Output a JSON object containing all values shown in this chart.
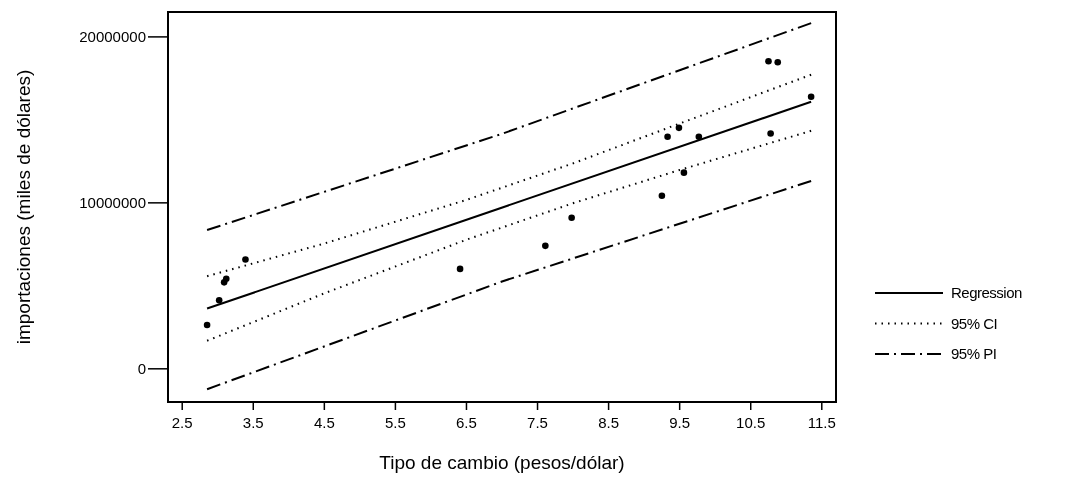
{
  "chart_data": {
    "type": "scatter",
    "xlabel": "Tipo de cambio (pesos/dólar)",
    "ylabel": "importaciones (miles de dólares)",
    "xlim": [
      2.3,
      11.7
    ],
    "ylim": [
      -2000000,
      21500000
    ],
    "xticks": [
      2.5,
      3.5,
      4.5,
      5.5,
      6.5,
      7.5,
      8.5,
      9.5,
      10.5,
      11.5
    ],
    "yticks": [
      0,
      10000000,
      20000000
    ],
    "grid": false,
    "legend": "right",
    "series": [
      {
        "marker": "circle",
        "color": "#000000",
        "x": [
          2.85,
          3.02,
          3.09,
          3.12,
          3.39,
          6.41,
          7.61,
          7.98,
          9.25,
          9.33,
          9.49,
          9.56,
          9.77,
          10.75,
          10.88,
          10.78,
          11.35
        ],
        "values": [
          2640000,
          4130000,
          5210000,
          5420000,
          6590000,
          6020000,
          7410000,
          9100000,
          10430000,
          13980000,
          14520000,
          11820000,
          13980000,
          18530000,
          18470000,
          14180000,
          16390000
        ]
      },
      {
        "type": "line",
        "name": "Regression",
        "color": "#000000",
        "line_style": "solid",
        "marker": "none",
        "x": [
          2.85,
          11.35
        ],
        "values": [
          3630000,
          16090000
        ]
      },
      {
        "type": "line",
        "name": "95% CI",
        "color": "#000000",
        "line_style": "dotted",
        "marker": "none",
        "x": [
          2.85,
          4.5,
          6.5,
          8.0,
          9.5,
          11.35
        ],
        "values": [
          5580000,
          7550000,
          10180000,
          12380000,
          14780000,
          17720000
        ]
      },
      {
        "type": "line",
        "color": "#000000",
        "line_style": "dotted",
        "marker": "none",
        "x": [
          2.85,
          4.5,
          6.5,
          8.0,
          9.5,
          11.35
        ],
        "values": [
          1690000,
          4550000,
          7780000,
          9980000,
          11980000,
          14340000
        ]
      },
      {
        "type": "line",
        "name": "95% PI",
        "color": "#000000",
        "line_style": "dashdot",
        "marker": "none",
        "x": [
          2.85,
          7.0,
          11.35
        ],
        "values": [
          8360000,
          14160000,
          20830000
        ]
      },
      {
        "type": "line",
        "color": "#000000",
        "line_style": "dashdot",
        "marker": "none",
        "x": [
          2.85,
          7.0,
          11.35
        ],
        "values": [
          -1230000,
          5260000,
          11320000
        ]
      }
    ]
  }
}
